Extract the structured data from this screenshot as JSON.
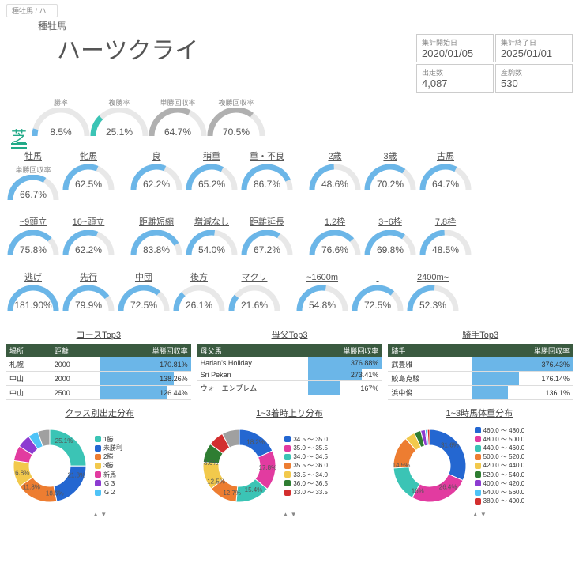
{
  "tab": "種牡馬 / ハ...",
  "breadcrumb": "種牡馬",
  "title": "ハーツクライ",
  "meta": [
    {
      "l": "集計開始日",
      "v": "2020/01/05"
    },
    {
      "l": "集計終了日",
      "v": "2025/01/01"
    },
    {
      "l": "出走数",
      "v": "4,087"
    },
    {
      "l": "産駒数",
      "v": "530"
    }
  ],
  "turf": "芝",
  "overview": [
    {
      "l": "勝率",
      "v": "8.5%",
      "p": 8.5,
      "c": "#6bb6e8"
    },
    {
      "l": "複勝率",
      "v": "25.1%",
      "p": 25.1,
      "c": "#3bc4b5"
    },
    {
      "l": "単勝回収率",
      "v": "64.7%",
      "p": 64.7,
      "c": "#b0b0b0"
    },
    {
      "l": "複勝回収率",
      "v": "70.5%",
      "p": 70.5,
      "c": "#b0b0b0"
    }
  ],
  "rows": [
    {
      "items": [
        {
          "l": "牡馬",
          "sub": "単勝回収率",
          "v": "66.7%",
          "p": 66.7
        },
        {
          "l": "牝馬",
          "v": "62.5%",
          "p": 62.5
        },
        null,
        {
          "l": "良",
          "v": "62.2%",
          "p": 62.2
        },
        {
          "l": "稍重",
          "v": "65.2%",
          "p": 65.2
        },
        {
          "l": "重・不良",
          "v": "86.7%",
          "p": 86.7
        },
        null,
        {
          "l": "2歳",
          "v": "48.6%",
          "p": 48.6
        },
        {
          "l": "3歳",
          "v": "70.2%",
          "p": 70.2
        },
        {
          "l": "古馬",
          "v": "64.7%",
          "p": 64.7
        }
      ]
    },
    {
      "items": [
        {
          "l": "~9頭立",
          "v": "75.8%",
          "p": 75.8
        },
        {
          "l": "16~頭立",
          "v": "62.2%",
          "p": 62.2
        },
        null,
        {
          "l": "距離短縮",
          "v": "83.8%",
          "p": 83.8
        },
        {
          "l": "増減なし",
          "v": "54.0%",
          "p": 54.0
        },
        {
          "l": "距離延長",
          "v": "67.2%",
          "p": 67.2
        },
        null,
        {
          "l": "1,2枠",
          "v": "76.6%",
          "p": 76.6
        },
        {
          "l": "3~6枠",
          "v": "69.8%",
          "p": 69.8
        },
        {
          "l": "7,8枠",
          "v": "48.5%",
          "p": 48.5
        }
      ]
    },
    {
      "items": [
        {
          "l": "逃げ",
          "v": "181.90%",
          "p": 100
        },
        {
          "l": "先行",
          "v": "79.9%",
          "p": 79.9
        },
        {
          "l": "中団",
          "v": "72.5%",
          "p": 72.5
        },
        {
          "l": "後方",
          "v": "26.1%",
          "p": 26.1
        },
        {
          "l": "マクリ",
          "v": "21.6%",
          "p": 21.6
        },
        null,
        {
          "l": "~1600m",
          "v": "54.8%",
          "p": 54.8
        },
        {
          "l": "",
          "v": "72.5%",
          "p": 72.5
        },
        {
          "l": "2400m~",
          "v": "52.3%",
          "p": 52.3
        }
      ]
    }
  ],
  "arccolor": "#6bb6e8",
  "tables": [
    {
      "title": "コースTop3",
      "cols": [
        "場所",
        "距離",
        "単勝回収率"
      ],
      "rows": [
        [
          "札幌",
          "2000",
          "170.81%",
          100
        ],
        [
          "中山",
          "2000",
          "138.26%",
          81
        ],
        [
          "中山",
          "2500",
          "126.44%",
          74
        ]
      ]
    },
    {
      "title": "母父Top3",
      "cols": [
        "母父馬",
        "単勝回収率"
      ],
      "rows": [
        [
          "Harlan's Holiday",
          "376.88%",
          100
        ],
        [
          "Sri Pekan",
          "273.41%",
          73
        ],
        [
          "ウォーエンブレム",
          "167%",
          44
        ]
      ]
    },
    {
      "title": "騎手Top3",
      "cols": [
        "騎手",
        "単勝回収率"
      ],
      "rows": [
        [
          "武豊雅",
          "376.43%",
          100
        ],
        [
          "鮫島克駿",
          "176.14%",
          47
        ],
        [
          "浜中俊",
          "136.1%",
          36
        ]
      ]
    }
  ],
  "pies": [
    {
      "title": "クラス別出走分布",
      "labels": [
        {
          "t": "25.1%",
          "a": 30
        },
        {
          "t": "21.8%",
          "a": 110
        },
        {
          "t": "18.6%",
          "a": 170
        },
        {
          "t": "11.8%",
          "a": 220
        },
        {
          "t": "6.8%",
          "a": 255
        }
      ],
      "slices": [
        {
          "c": "#3bc4b5",
          "p": 25.1,
          "l": "1勝"
        },
        {
          "c": "#2467d1",
          "p": 21.8,
          "l": "未勝利"
        },
        {
          "c": "#ed7d31",
          "p": 18.6,
          "l": "2勝"
        },
        {
          "c": "#f2c94c",
          "p": 11.8,
          "l": "3勝"
        },
        {
          "c": "#e23ba0",
          "p": 6.8,
          "l": "新馬"
        },
        {
          "c": "#8c3bd1",
          "p": 6.0,
          "l": "Ｇ３"
        },
        {
          "c": "#4fc3f7",
          "p": 4.5,
          "l": "Ｇ２"
        },
        {
          "c": "#a0a0a0",
          "p": 5.4,
          "l": ""
        }
      ]
    },
    {
      "title": "1~3着時上り分布",
      "labels": [
        {
          "t": "18.2%",
          "a": 35
        },
        {
          "t": "17.8%",
          "a": 95
        },
        {
          "t": "15.4%",
          "a": 150
        },
        {
          "t": "12.7%",
          "a": 195
        },
        {
          "t": "12.5%",
          "a": 235
        },
        {
          "t": "8.6%",
          "a": 275
        }
      ],
      "slices": [
        {
          "c": "#2467d1",
          "p": 18.2,
          "l": "34.5 ～ 35.0"
        },
        {
          "c": "#e23ba0",
          "p": 17.8,
          "l": "35.0 ～ 35.5"
        },
        {
          "c": "#3bc4b5",
          "p": 15.4,
          "l": "34.0 ～ 34.5"
        },
        {
          "c": "#ed7d31",
          "p": 12.7,
          "l": "35.5 ～ 36.0"
        },
        {
          "c": "#f2c94c",
          "p": 12.5,
          "l": "33.5 ～ 34.0"
        },
        {
          "c": "#2e7d32",
          "p": 8.6,
          "l": "36.0 ～ 36.5"
        },
        {
          "c": "#d32f2f",
          "p": 7.0,
          "l": "33.0 ～ 33.5"
        },
        {
          "c": "#a0a0a0",
          "p": 7.8,
          "l": ""
        }
      ]
    },
    {
      "title": "1~3時馬体重分布",
      "labels": [
        {
          "t": "31.6%",
          "a": 45
        },
        {
          "t": "26.4%",
          "a": 140
        },
        {
          "t": "16%",
          "a": 205
        },
        {
          "t": "14.5%",
          "a": 270
        }
      ],
      "slices": [
        {
          "c": "#2467d1",
          "p": 31.6,
          "l": "460.0 ～ 480.0"
        },
        {
          "c": "#e23ba0",
          "p": 26.4,
          "l": "480.0 ～ 500.0"
        },
        {
          "c": "#3bc4b5",
          "p": 16.0,
          "l": "440.0 ～ 460.0"
        },
        {
          "c": "#ed7d31",
          "p": 14.5,
          "l": "500.0 ～ 520.0"
        },
        {
          "c": "#f2c94c",
          "p": 4.5,
          "l": "420.0 ～ 440.0"
        },
        {
          "c": "#2e7d32",
          "p": 3.0,
          "l": "520.0 ～ 540.0"
        },
        {
          "c": "#8c3bd1",
          "p": 2.0,
          "l": "400.0 ～ 420.0"
        },
        {
          "c": "#4fc3f7",
          "p": 1.0,
          "l": "540.0 ～ 560.0"
        },
        {
          "c": "#d32f2f",
          "p": 1.0,
          "l": "380.0 ～ 400.0"
        }
      ]
    }
  ],
  "arrows": "▲ ▼"
}
